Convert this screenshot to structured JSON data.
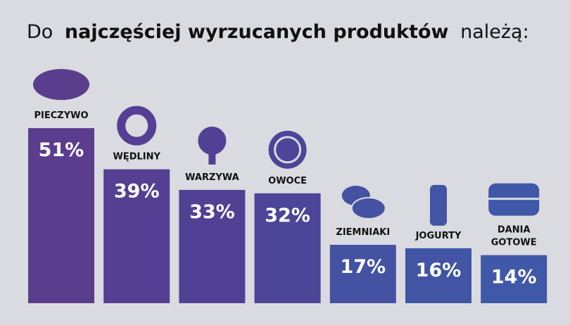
{
  "chart_data": {
    "type": "bar",
    "title_parts": [
      "Do",
      "najczęściej wyrzucanych produktów",
      "należą:"
    ],
    "categories": [
      "PIECZYWO",
      "WĘDLINY",
      "WARZYWA",
      "OWOCE",
      "ZIEMNIAKI",
      "JOGURTY",
      "DANIA GOTOWE"
    ],
    "values": [
      51,
      39,
      33,
      32,
      17,
      16,
      14
    ],
    "value_labels": [
      "51%",
      "39%",
      "33%",
      "32%",
      "17%",
      "16%",
      "14%"
    ],
    "colors": [
      "#5b3d8e",
      "#553f92",
      "#514195",
      "#4c4598",
      "#4551a2",
      "#4255a5",
      "#4058a8"
    ]
  }
}
